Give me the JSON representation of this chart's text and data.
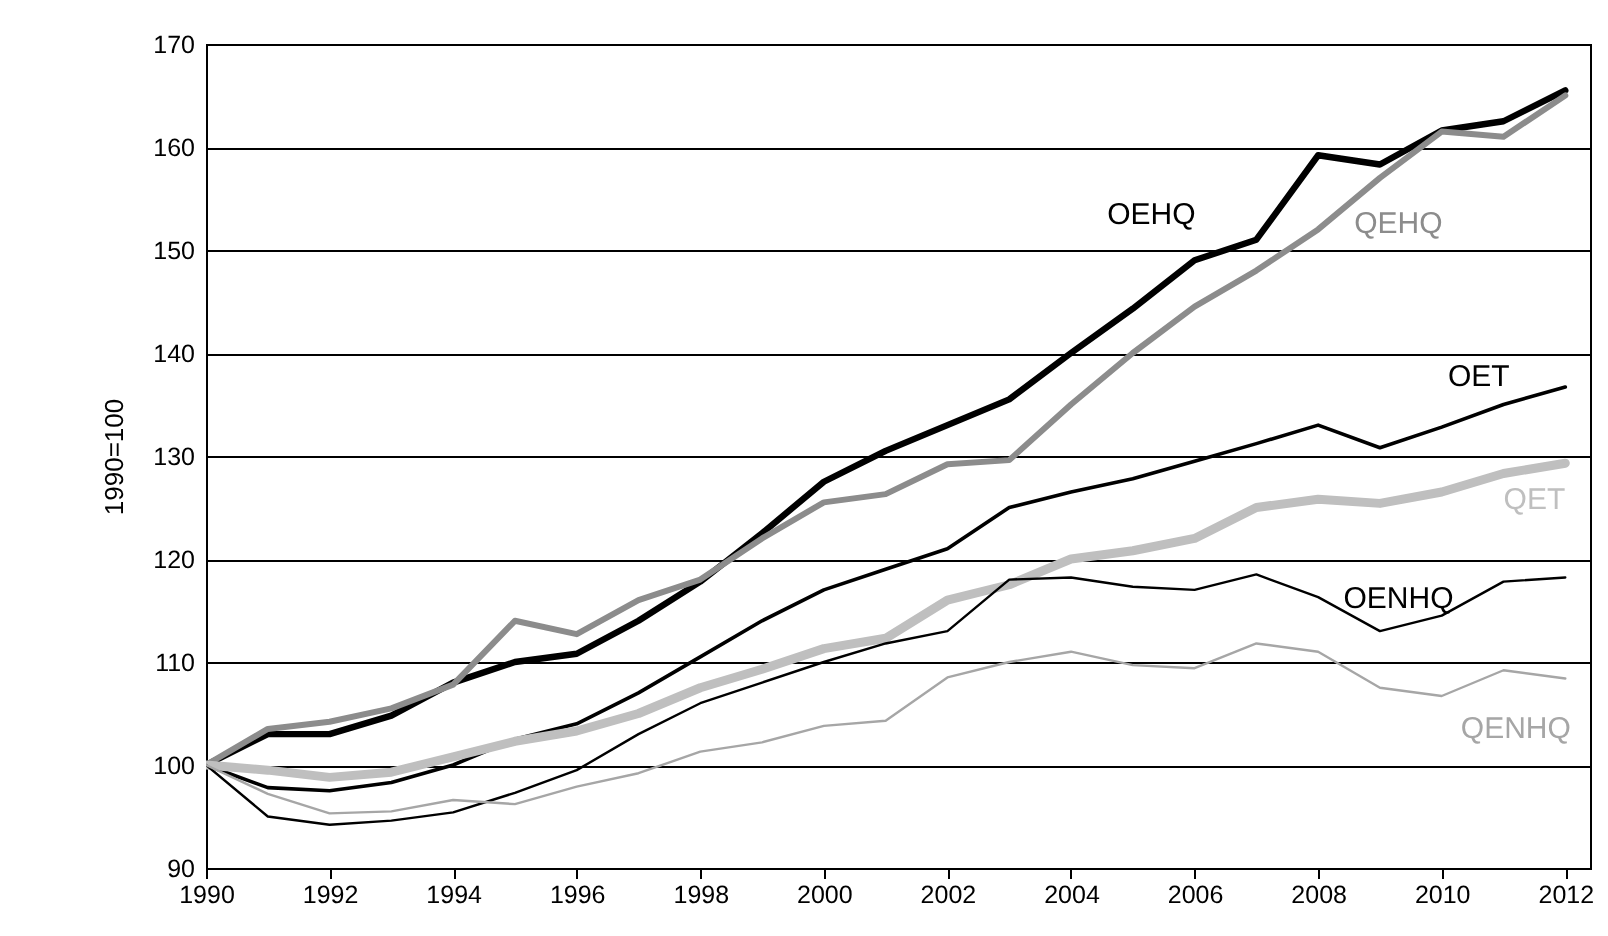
{
  "chart_data": {
    "type": "line",
    "ylabel": "1990=100",
    "x": [
      1990,
      1991,
      1992,
      1993,
      1994,
      1995,
      1996,
      1997,
      1998,
      1999,
      2000,
      2001,
      2002,
      2003,
      2004,
      2005,
      2006,
      2007,
      2008,
      2009,
      2010,
      2011,
      2012
    ],
    "series": [
      {
        "name": "OEHQ",
        "color": "#000000",
        "values": [
          100,
          103,
          103,
          104.8,
          108,
          110,
          110.8,
          114,
          117.8,
          122.5,
          127.5,
          130.5,
          133,
          135.5,
          140,
          144.3,
          149,
          151,
          159.2,
          158.3,
          161.6,
          162.5,
          165.5
        ]
      },
      {
        "name": "QEHQ",
        "color": "#8c8c8c",
        "values": [
          100,
          103.5,
          104.2,
          105.5,
          107.8,
          114,
          112.7,
          116,
          118,
          122,
          125.5,
          126.3,
          129.2,
          129.6,
          135,
          140,
          144.5,
          148,
          152,
          157,
          161.5,
          161,
          165
        ]
      },
      {
        "name": "OET",
        "color": "#000000",
        "values": [
          100,
          97.8,
          97.5,
          98.3,
          100,
          102.5,
          104,
          107,
          110.5,
          114,
          117,
          119,
          121,
          125,
          126.5,
          127.8,
          129.5,
          131.2,
          133,
          130.8,
          132.8,
          135,
          136.7
        ]
      },
      {
        "name": "QET",
        "color": "#bfbfbf",
        "values": [
          100,
          99.5,
          98.8,
          99.3,
          100.8,
          102.3,
          103.3,
          105,
          107.5,
          109.3,
          111.3,
          112.3,
          116,
          117.5,
          120,
          120.8,
          122,
          125,
          125.8,
          125.4,
          126.5,
          128.3,
          129.3
        ]
      },
      {
        "name": "OENHQ",
        "color": "#000000",
        "values": [
          100,
          95,
          94.2,
          94.6,
          95.4,
          97.3,
          99.5,
          103,
          106,
          108,
          110,
          111.8,
          113,
          118,
          118.2,
          117.3,
          117,
          118.5,
          116.3,
          113,
          114.5,
          117.8,
          118.2
        ]
      },
      {
        "name": "QENHQ",
        "color": "#a6a6a6",
        "values": [
          100,
          97.2,
          95.3,
          95.5,
          96.6,
          96.2,
          97.9,
          99.2,
          101.3,
          102.2,
          103.8,
          104.3,
          108.5,
          110,
          111,
          109.7,
          109.4,
          111.8,
          111,
          107.5,
          106.7,
          109.2,
          108.4
        ]
      }
    ],
    "xlim": [
      1990,
      2012.4
    ],
    "xticks": [
      1990,
      1992,
      1994,
      1996,
      1998,
      2000,
      2002,
      2004,
      2006,
      2008,
      2010,
      2012
    ],
    "ylim": [
      90,
      170
    ],
    "yticks": [
      90,
      100,
      110,
      120,
      130,
      140,
      150,
      160,
      170
    ],
    "grid": "y",
    "marker": "none",
    "line_style": "solid"
  }
}
